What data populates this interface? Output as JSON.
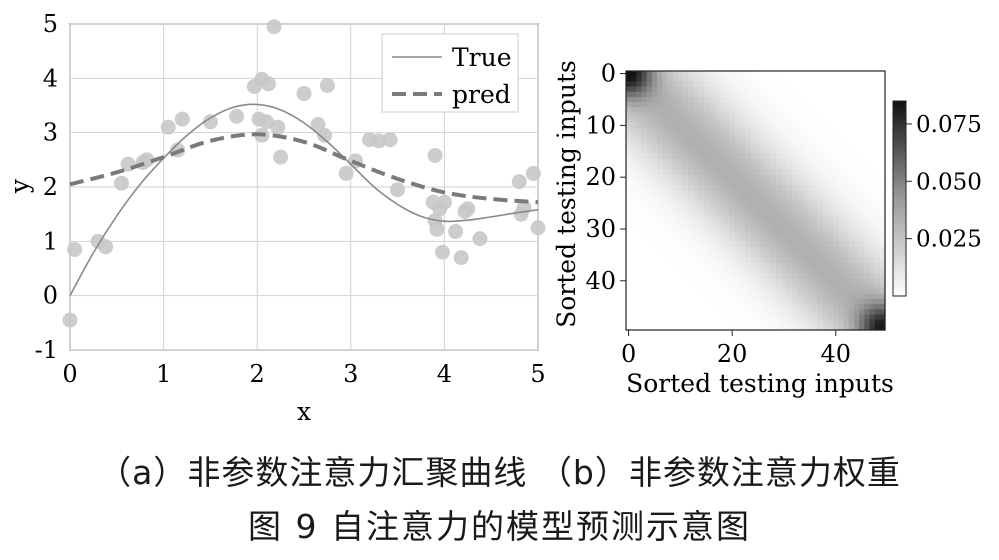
{
  "chart_data": [
    {
      "type": "line",
      "xlabel": "x",
      "ylabel": "y",
      "xlim": [
        0,
        5
      ],
      "ylim": [
        -1,
        5
      ],
      "xticks": [
        "0",
        "1",
        "2",
        "3",
        "4",
        "5"
      ],
      "yticks": [
        "-1",
        "0",
        "1",
        "2",
        "3",
        "4",
        "5"
      ],
      "grid": true,
      "legend": {
        "position": "top-right",
        "entries": [
          "True",
          "pred"
        ]
      },
      "series": [
        {
          "name": "True",
          "style": "solid",
          "color": "#8a8a8a",
          "x": [
            0,
            0.25,
            0.5,
            0.75,
            1.0,
            1.25,
            1.5,
            1.75,
            2.0,
            2.25,
            2.5,
            2.75,
            3.0,
            3.25,
            3.5,
            3.75,
            4.0,
            4.25,
            4.5,
            4.75,
            5.0
          ],
          "y": [
            0.0,
            0.79,
            1.47,
            2.05,
            2.53,
            2.95,
            3.27,
            3.47,
            3.52,
            3.42,
            3.18,
            2.83,
            2.42,
            2.0,
            1.68,
            1.46,
            1.37,
            1.39,
            1.45,
            1.52,
            1.58
          ]
        },
        {
          "name": "pred",
          "style": "dashed",
          "color": "#7a7a7a",
          "x": [
            0,
            0.5,
            1.0,
            1.5,
            2.0,
            2.5,
            3.0,
            3.5,
            4.0,
            4.5,
            5.0
          ],
          "y": [
            2.05,
            2.27,
            2.55,
            2.85,
            2.97,
            2.83,
            2.48,
            2.15,
            1.9,
            1.78,
            1.72
          ]
        },
        {
          "name": "",
          "style": "scatter",
          "color": "#c8c8c8",
          "points": [
            [
              0.0,
              -0.45
            ],
            [
              0.05,
              0.85
            ],
            [
              0.3,
              1.0
            ],
            [
              0.38,
              0.9
            ],
            [
              0.55,
              2.07
            ],
            [
              0.62,
              2.42
            ],
            [
              0.78,
              2.45
            ],
            [
              0.82,
              2.5
            ],
            [
              1.05,
              3.1
            ],
            [
              1.15,
              2.68
            ],
            [
              1.2,
              3.25
            ],
            [
              1.5,
              3.2
            ],
            [
              1.78,
              3.3
            ],
            [
              1.97,
              3.85
            ],
            [
              2.02,
              3.25
            ],
            [
              2.05,
              3.98
            ],
            [
              2.05,
              2.95
            ],
            [
              2.1,
              3.2
            ],
            [
              2.12,
              3.9
            ],
            [
              2.18,
              4.95
            ],
            [
              2.22,
              3.1
            ],
            [
              2.25,
              2.55
            ],
            [
              2.5,
              3.72
            ],
            [
              2.65,
              3.15
            ],
            [
              2.72,
              2.95
            ],
            [
              2.75,
              3.87
            ],
            [
              2.95,
              2.25
            ],
            [
              3.05,
              2.48
            ],
            [
              3.2,
              2.87
            ],
            [
              3.3,
              2.85
            ],
            [
              3.42,
              2.87
            ],
            [
              3.5,
              1.95
            ],
            [
              3.88,
              1.72
            ],
            [
              3.9,
              2.58
            ],
            [
              3.9,
              1.38
            ],
            [
              3.92,
              1.22
            ],
            [
              3.95,
              1.6
            ],
            [
              3.98,
              0.8
            ],
            [
              4.0,
              1.72
            ],
            [
              4.12,
              1.18
            ],
            [
              4.18,
              0.7
            ],
            [
              4.22,
              1.55
            ],
            [
              4.25,
              1.6
            ],
            [
              4.38,
              1.05
            ],
            [
              4.8,
              2.1
            ],
            [
              4.82,
              1.5
            ],
            [
              4.85,
              1.62
            ],
            [
              4.95,
              2.25
            ],
            [
              5.0,
              1.25
            ]
          ]
        }
      ]
    },
    {
      "type": "heatmap",
      "xlabel": "Sorted testing inputs",
      "ylabel": "Sorted testing inputs",
      "size": 50,
      "xticks": [
        "0",
        "20",
        "40"
      ],
      "yticks": [
        "0",
        "10",
        "20",
        "30",
        "40"
      ],
      "colorbar": {
        "ticks": [
          "0.025",
          "0.050",
          "0.075"
        ],
        "range": [
          0.0,
          0.085
        ],
        "colormap": "gray_r"
      }
    }
  ],
  "captions": {
    "subfigures": "（a）非参数注意力汇聚曲线   （b）非参数注意力权重",
    "figure": "图 9   自注意力的模型预测示意图"
  }
}
